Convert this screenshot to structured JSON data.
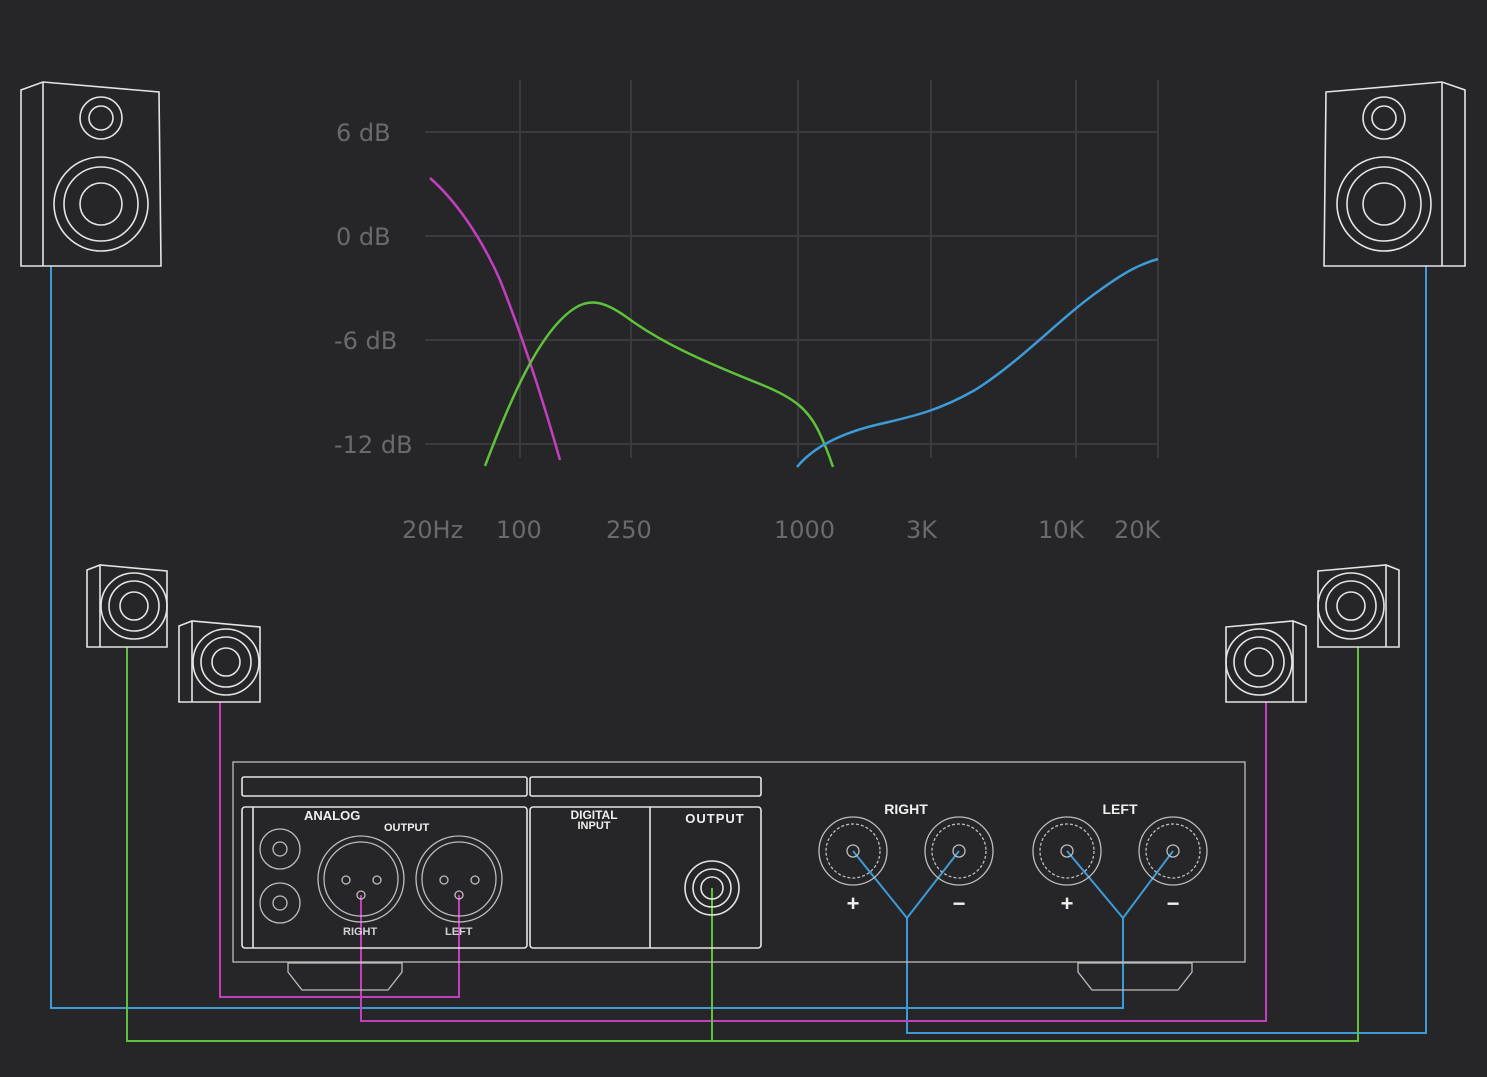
{
  "colors": {
    "background": "#262628",
    "subwoofer_band": "#c43fc0",
    "mid_band": "#5ec23a",
    "high_band": "#3d9bd8"
  },
  "chart": {
    "y_ticks": [
      "6 dB",
      "0 dB",
      "-6 dB",
      "-12 dB"
    ],
    "x_ticks": [
      "20Hz",
      "100",
      "250",
      "1000",
      "3K",
      "10K",
      "20K"
    ]
  },
  "amplifier": {
    "analog_label": "ANALOG",
    "output_label": "OUTPUT",
    "xlr_right_label": "RIGHT",
    "xlr_left_label": "LEFT",
    "digital_label_line1": "DIGITAL",
    "digital_label_line2": "INPUT",
    "digital_output_label": "OUTPUT",
    "speaker_right_label": "RIGHT",
    "speaker_left_label": "LEFT",
    "plus": "+",
    "minus": "−"
  }
}
